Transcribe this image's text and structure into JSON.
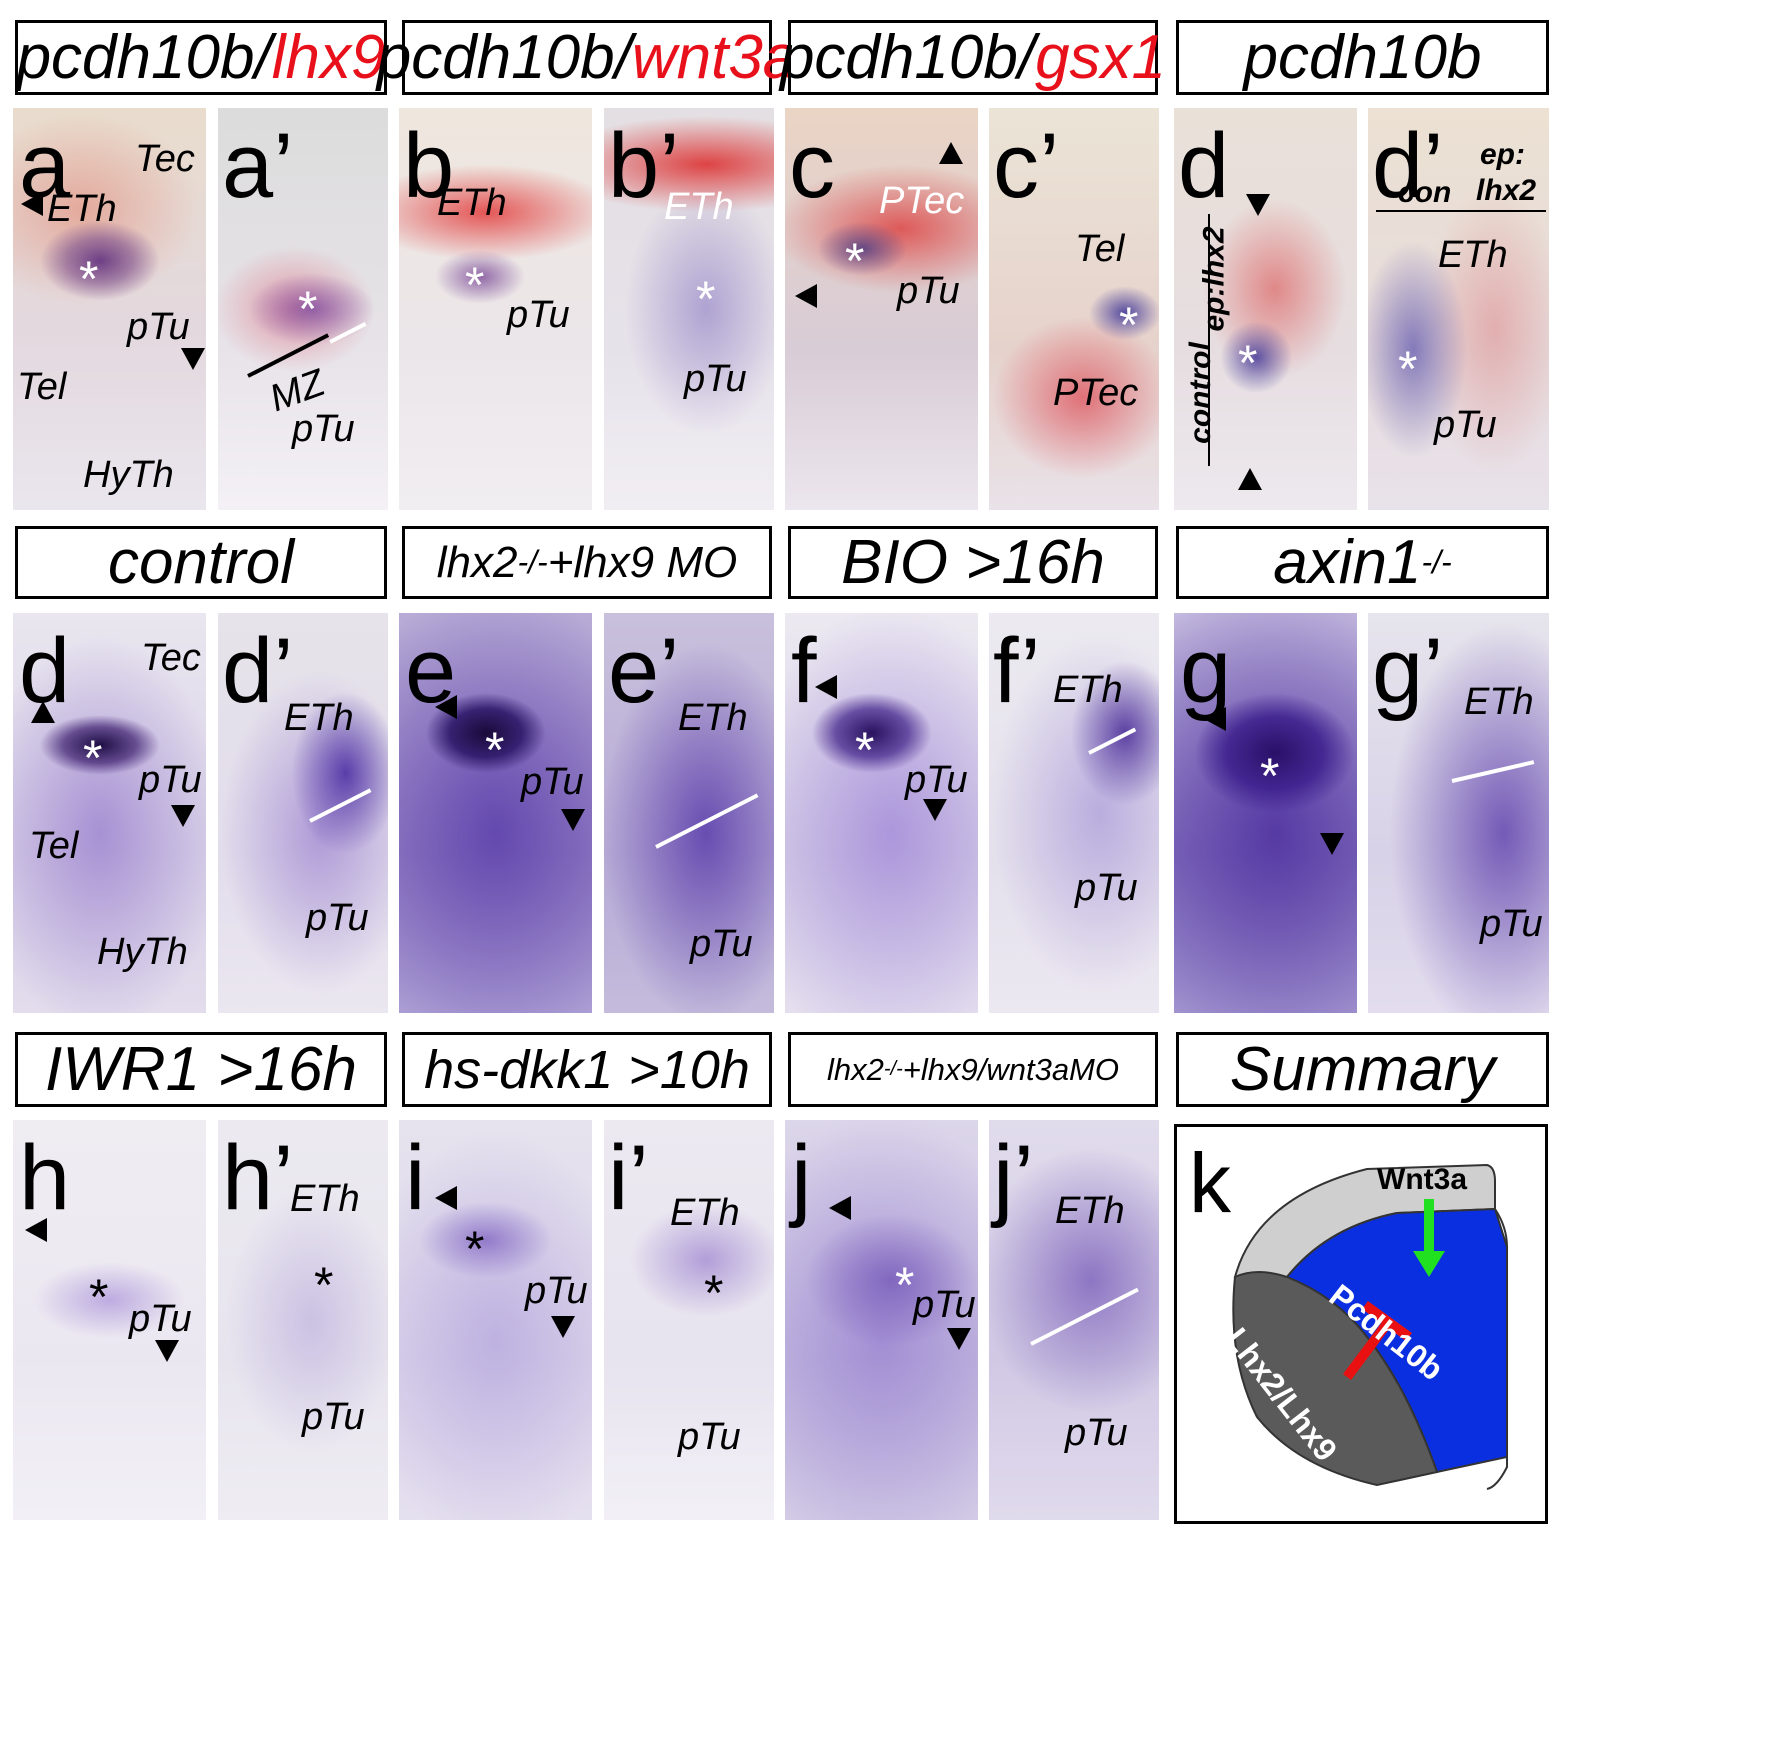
{
  "headers": {
    "r1c1_a": "pcdh10b/",
    "r1c1_b": "lhx9",
    "r1c2_a": "pcdh10b/",
    "r1c2_b": "wnt3a",
    "r1c3_a": "pcdh10b/",
    "r1c3_b": "gsx1",
    "r1c4": "pcdh10b",
    "r2c1": "control",
    "r2c2_a": "lhx2",
    "r2c2_sup": "-/-",
    "r2c2_b": "+lhx9 MO",
    "r2c3": "BIO  >16h",
    "r2c4_a": "axin1",
    "r2c4_sup": "-/-",
    "r3c1": "IWR1  >16h",
    "r3c2": "hs-dkk1 >10h",
    "r3c3_a": "lhx2",
    "r3c3_sup": "-/-",
    "r3c3_b": "+lhx9/wnt3aMO",
    "r3c4": "Summary"
  },
  "panel_letters": {
    "a": "a",
    "a2": "a’",
    "b": "b",
    "b2": "b’",
    "c": "c",
    "c2": "c’",
    "d": "d",
    "d2": "d’",
    "d_r2": "d",
    "d2_r2": "d’",
    "e": "e",
    "e2": "e’",
    "f": "f",
    "f2": "f’",
    "g": "g",
    "g2": "g’",
    "h": "h",
    "h2": "h’",
    "i": "i",
    "i2": "i’",
    "j": "j",
    "j2": "j’",
    "k": "k"
  },
  "labels": {
    "Tec": "Tec",
    "ETh": "ETh",
    "pTu": "pTu",
    "Tel": "Tel",
    "HyTh": "HyTh",
    "MZ": "MZ",
    "PTec": "PTec",
    "control": "control",
    "ep_lhx2": "ep:lhx2",
    "con": "con",
    "ep": "ep:",
    "lhx2": "lhx2",
    "star": "*"
  },
  "summary": {
    "wnt3a": "Wnt3a",
    "pcdh10b": "Pcdh10b",
    "lhx": "Lhx2/Lhx9"
  },
  "colors": {
    "stain_purple": "#6a4fb0",
    "stain_red": "#e23a3a",
    "summary_blue": "#0a2fe0",
    "inhibit_red": "#e81010",
    "activate_green": "#20e020"
  }
}
